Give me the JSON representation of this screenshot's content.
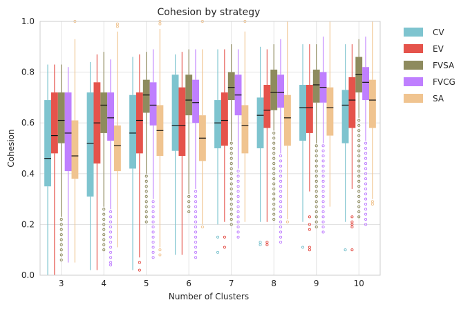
{
  "chart_data": {
    "type": "box",
    "title": "Cohesion by strategy",
    "xlabel": "Number of Clusters",
    "ylabel": "Cohesion",
    "categories": [
      "3",
      "4",
      "5",
      "6",
      "7",
      "8",
      "9",
      "10"
    ],
    "ylim": [
      0,
      1
    ],
    "yticks": [
      "0.0",
      "0.2",
      "0.4",
      "0.6",
      "0.8",
      "1.0"
    ],
    "grid": true,
    "legend_position": "outside-top-right",
    "series": [
      {
        "name": "CV",
        "color": "#7ec4cf",
        "boxes": [
          {
            "whislo": 0.0,
            "q1": 0.35,
            "med": 0.46,
            "q3": 0.69,
            "whishi": 0.83,
            "fliers": []
          },
          {
            "whislo": 0.02,
            "q1": 0.31,
            "med": 0.52,
            "q3": 0.72,
            "whishi": 0.84,
            "fliers": []
          },
          {
            "whislo": 0.02,
            "q1": 0.42,
            "med": 0.56,
            "q3": 0.71,
            "whishi": 0.86,
            "fliers": []
          },
          {
            "whislo": 0.08,
            "q1": 0.49,
            "med": 0.59,
            "q3": 0.79,
            "whishi": 0.87,
            "fliers": []
          },
          {
            "whislo": 0.2,
            "q1": 0.5,
            "med": 0.6,
            "q3": 0.69,
            "whishi": 0.89,
            "fliers": [
              0.15,
              0.09
            ]
          },
          {
            "whislo": 0.21,
            "q1": 0.5,
            "med": 0.63,
            "q3": 0.7,
            "whishi": 0.9,
            "fliers": [
              0.13,
              0.12
            ]
          },
          {
            "whislo": 0.21,
            "q1": 0.53,
            "med": 0.66,
            "q3": 0.75,
            "whishi": 0.91,
            "fliers": [
              0.11
            ]
          },
          {
            "whislo": 0.21,
            "q1": 0.52,
            "med": 0.67,
            "q3": 0.73,
            "whishi": 0.91,
            "fliers": [
              0.1
            ]
          }
        ]
      },
      {
        "name": "EV",
        "color": "#e5534b",
        "boxes": [
          {
            "whislo": 0.0,
            "q1": 0.48,
            "med": 0.55,
            "q3": 0.72,
            "whishi": 0.83,
            "fliers": []
          },
          {
            "whislo": 0.02,
            "q1": 0.44,
            "med": 0.6,
            "q3": 0.76,
            "whishi": 0.87,
            "fliers": []
          },
          {
            "whislo": 0.07,
            "q1": 0.48,
            "med": 0.61,
            "q3": 0.72,
            "whishi": 0.87,
            "fliers": [
              0.05,
              0.02
            ]
          },
          {
            "whislo": 0.08,
            "q1": 0.47,
            "med": 0.59,
            "q3": 0.74,
            "whishi": 0.88,
            "fliers": []
          },
          {
            "whislo": 0.21,
            "q1": 0.51,
            "med": 0.61,
            "q3": 0.72,
            "whishi": 0.89,
            "fliers": [
              0.15,
              0.11
            ]
          },
          {
            "whislo": 0.21,
            "q1": 0.58,
            "med": 0.65,
            "q3": 0.75,
            "whishi": 0.89,
            "fliers": [
              0.13,
              0.12
            ]
          },
          {
            "whislo": 0.33,
            "q1": 0.56,
            "med": 0.66,
            "q3": 0.75,
            "whishi": 0.91,
            "fliers": [
              0.23,
              0.2,
              0.18,
              0.11,
              0.1
            ]
          },
          {
            "whislo": 0.34,
            "q1": 0.58,
            "med": 0.69,
            "q3": 0.78,
            "whishi": 0.91,
            "fliers": [
              0.23,
              0.21,
              0.2,
              0.19,
              0.1
            ]
          }
        ]
      },
      {
        "name": "FVSA",
        "color": "#8e8b5e",
        "boxes": [
          {
            "whislo": 0.23,
            "q1": 0.52,
            "med": 0.61,
            "q3": 0.72,
            "whishi": 0.83,
            "fliers": [
              0.22,
              0.2,
              0.18,
              0.16,
              0.14,
              0.12,
              0.1,
              0.08,
              0.06
            ]
          },
          {
            "whislo": 0.27,
            "q1": 0.56,
            "med": 0.67,
            "q3": 0.72,
            "whishi": 0.88,
            "fliers": [
              0.26,
              0.24,
              0.22,
              0.2,
              0.18,
              0.16,
              0.14,
              0.12,
              0.1
            ]
          },
          {
            "whislo": 0.4,
            "q1": 0.64,
            "med": 0.71,
            "q3": 0.77,
            "whishi": 0.88,
            "fliers": [
              0.39,
              0.37,
              0.35,
              0.33,
              0.31,
              0.29,
              0.27,
              0.25,
              0.23,
              0.21
            ]
          },
          {
            "whislo": 0.32,
            "q1": 0.63,
            "med": 0.69,
            "q3": 0.79,
            "whishi": 0.89,
            "fliers": [
              0.31,
              0.29,
              0.27,
              0.25
            ]
          },
          {
            "whislo": 0.53,
            "q1": 0.69,
            "med": 0.74,
            "q3": 0.8,
            "whishi": 0.91,
            "fliers": [
              0.52,
              0.5,
              0.48,
              0.46,
              0.44,
              0.42,
              0.4,
              0.38,
              0.36,
              0.34,
              0.32,
              0.3,
              0.28,
              0.26,
              0.24,
              0.22,
              0.2
            ]
          },
          {
            "whislo": 0.57,
            "q1": 0.65,
            "med": 0.72,
            "q3": 0.81,
            "whishi": 0.91,
            "fliers": [
              0.56,
              0.54,
              0.52,
              0.5,
              0.48,
              0.46,
              0.44,
              0.42,
              0.4,
              0.38,
              0.36,
              0.34,
              0.32,
              0.3,
              0.28,
              0.26,
              0.24,
              0.22
            ]
          },
          {
            "whislo": 0.52,
            "q1": 0.68,
            "med": 0.75,
            "q3": 0.81,
            "whishi": 0.91,
            "fliers": [
              0.51,
              0.49,
              0.47,
              0.45,
              0.43,
              0.41,
              0.39,
              0.37,
              0.35,
              0.33,
              0.31,
              0.29,
              0.27,
              0.25,
              0.23,
              0.21,
              0.19
            ]
          },
          {
            "whislo": 0.62,
            "q1": 0.72,
            "med": 0.79,
            "q3": 0.86,
            "whishi": 0.93,
            "fliers": [
              0.61,
              0.59,
              0.57,
              0.55,
              0.53,
              0.51,
              0.49,
              0.47,
              0.45,
              0.43,
              0.41,
              0.39,
              0.37,
              0.35,
              0.33,
              0.31,
              0.29,
              0.27,
              0.25,
              0.23
            ]
          }
        ]
      },
      {
        "name": "FVCG",
        "color": "#bf7fff",
        "boxes": [
          {
            "whislo": 0.05,
            "q1": 0.41,
            "med": 0.56,
            "q3": 0.72,
            "whishi": 0.82,
            "fliers": []
          },
          {
            "whislo": 0.26,
            "q1": 0.53,
            "med": 0.62,
            "q3": 0.72,
            "whishi": 0.85,
            "fliers": [
              0.25,
              0.23,
              0.21,
              0.19,
              0.17,
              0.15,
              0.13,
              0.11,
              0.09,
              0.07,
              0.05,
              0.04
            ]
          },
          {
            "whislo": 0.3,
            "q1": 0.59,
            "med": 0.67,
            "q3": 0.76,
            "whishi": 0.89,
            "fliers": [
              0.29,
              0.27,
              0.25,
              0.23,
              0.21,
              0.19,
              0.17,
              0.15,
              0.13,
              0.11,
              0.09,
              0.07
            ]
          },
          {
            "whislo": 0.34,
            "q1": 0.6,
            "med": 0.68,
            "q3": 0.77,
            "whishi": 0.89,
            "fliers": [
              0.33,
              0.31,
              0.29,
              0.27,
              0.25,
              0.23,
              0.21,
              0.19,
              0.17,
              0.15,
              0.13,
              0.11,
              0.09,
              0.07
            ]
          },
          {
            "whislo": 0.42,
            "q1": 0.63,
            "med": 0.71,
            "q3": 0.79,
            "whishi": 0.89,
            "fliers": [
              0.41,
              0.39,
              0.37,
              0.35,
              0.33,
              0.31,
              0.29,
              0.27,
              0.25,
              0.23,
              0.21,
              0.19,
              0.17,
              0.15
            ]
          },
          {
            "whislo": 0.48,
            "q1": 0.66,
            "med": 0.72,
            "q3": 0.79,
            "whishi": 0.93,
            "fliers": [
              0.47,
              0.45,
              0.43,
              0.41,
              0.39,
              0.37,
              0.35,
              0.33,
              0.31,
              0.29,
              0.27,
              0.25,
              0.23,
              0.21,
              0.19,
              0.17,
              0.15,
              0.13
            ]
          },
          {
            "whislo": 0.52,
            "q1": 0.68,
            "med": 0.74,
            "q3": 0.8,
            "whishi": 0.94,
            "fliers": [
              0.51,
              0.49,
              0.47,
              0.45,
              0.43,
              0.41,
              0.39,
              0.37,
              0.35,
              0.33,
              0.31,
              0.29,
              0.27,
              0.25,
              0.23,
              0.21,
              0.19,
              0.17
            ]
          },
          {
            "whislo": 0.53,
            "q1": 0.69,
            "med": 0.76,
            "q3": 0.82,
            "whishi": 0.94,
            "fliers": [
              0.52,
              0.5,
              0.48,
              0.46,
              0.44,
              0.42,
              0.4,
              0.38,
              0.36,
              0.34,
              0.32,
              0.3,
              0.28,
              0.26,
              0.24,
              0.22,
              0.2
            ]
          }
        ]
      },
      {
        "name": "SA",
        "color": "#f0c490",
        "boxes": [
          {
            "whislo": 0.05,
            "q1": 0.38,
            "med": 0.47,
            "q3": 0.61,
            "whishi": 0.93,
            "fliers": [
              1.0
            ]
          },
          {
            "whislo": 0.11,
            "q1": 0.41,
            "med": 0.51,
            "q3": 0.59,
            "whishi": 0.96,
            "fliers": [
              0.99,
              0.98
            ]
          },
          {
            "whislo": 0.11,
            "q1": 0.47,
            "med": 0.57,
            "q3": 0.67,
            "whishi": 0.97,
            "fliers": [
              0.1,
              0.08,
              0.99,
              1.0
            ]
          },
          {
            "whislo": 0.2,
            "q1": 0.45,
            "med": 0.54,
            "q3": 0.63,
            "whishi": 0.89,
            "fliers": [
              0.19,
              1.0
            ]
          },
          {
            "whislo": 0.21,
            "q1": 0.48,
            "med": 0.59,
            "q3": 0.67,
            "whishi": 0.96,
            "fliers": [
              1.0
            ]
          },
          {
            "whislo": 0.22,
            "q1": 0.51,
            "med": 0.62,
            "q3": 0.71,
            "whishi": 1.0,
            "fliers": [
              0.21
            ]
          },
          {
            "whislo": 0.27,
            "q1": 0.55,
            "med": 0.66,
            "q3": 0.74,
            "whishi": 1.0,
            "fliers": []
          },
          {
            "whislo": 0.3,
            "q1": 0.58,
            "med": 0.69,
            "q3": 0.77,
            "whishi": 1.0,
            "fliers": [
              0.29,
              0.28
            ]
          }
        ]
      }
    ]
  }
}
